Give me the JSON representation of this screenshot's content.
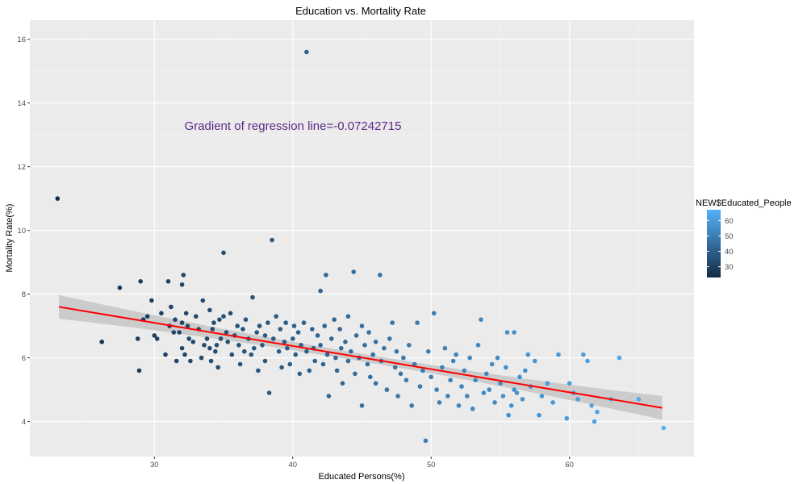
{
  "chart_data": {
    "type": "scatter",
    "title": "Education vs. Mortality Rate",
    "xlabel": "Educated Persons(%)",
    "ylabel": "Mortality Rate(%)",
    "xlim": [
      21,
      69
    ],
    "ylim": [
      2.9,
      16.6
    ],
    "x_ticks": [
      30,
      40,
      50,
      60
    ],
    "y_ticks": [
      4,
      6,
      8,
      10,
      12,
      14,
      16
    ],
    "grid": true,
    "background": "#ebebeb",
    "annotation": "Gradient of regression line=-0.07242715",
    "regression": {
      "slope": -0.07242715,
      "x_start": 23.1,
      "x_end": 66.7,
      "y_start": 7.6,
      "y_end": 4.43,
      "color": "#ff0000",
      "band_color": "#c8c8c8"
    },
    "legend": {
      "title": "NEW$Educated_People",
      "position": "right",
      "labels": [
        30,
        40,
        50,
        60
      ],
      "range": [
        23,
        67
      ],
      "color_low": "#132b43",
      "color_high": "#56b1f7"
    },
    "points": [
      [
        23,
        11
      ],
      [
        26.2,
        6.5
      ],
      [
        27.5,
        8.2
      ],
      [
        28.8,
        6.6
      ],
      [
        28.9,
        5.6
      ],
      [
        29,
        8.4
      ],
      [
        29.2,
        7.2
      ],
      [
        29.5,
        7.3
      ],
      [
        29.8,
        7.8
      ],
      [
        30,
        6.7
      ],
      [
        30.2,
        6.6
      ],
      [
        30.5,
        7.4
      ],
      [
        30.8,
        6.1
      ],
      [
        31,
        8.4
      ],
      [
        31.1,
        7
      ],
      [
        31.2,
        7.6
      ],
      [
        31.4,
        6.8
      ],
      [
        31.5,
        7.2
      ],
      [
        31.6,
        5.9
      ],
      [
        31.8,
        6.8
      ],
      [
        32,
        8.3
      ],
      [
        32,
        7.1
      ],
      [
        32,
        6.3
      ],
      [
        32.1,
        8.6
      ],
      [
        32.2,
        6.1
      ],
      [
        32.3,
        7.4
      ],
      [
        32.4,
        7
      ],
      [
        32.5,
        6.6
      ],
      [
        32.6,
        5.9
      ],
      [
        32.8,
        6.5
      ],
      [
        33,
        7.3
      ],
      [
        33.2,
        6.9
      ],
      [
        33.4,
        6
      ],
      [
        33.5,
        7.8
      ],
      [
        33.6,
        6.4
      ],
      [
        33.8,
        6.6
      ],
      [
        34,
        7.5
      ],
      [
        34,
        6.3
      ],
      [
        34.1,
        5.9
      ],
      [
        34.2,
        6.9
      ],
      [
        34.3,
        7.1
      ],
      [
        34.4,
        6.2
      ],
      [
        34.5,
        6.4
      ],
      [
        34.6,
        5.7
      ],
      [
        34.7,
        7.2
      ],
      [
        34.8,
        6.6
      ],
      [
        35,
        7.3
      ],
      [
        35,
        9.3
      ],
      [
        35.2,
        6.8
      ],
      [
        35.3,
        6.5
      ],
      [
        35.5,
        7.4
      ],
      [
        35.6,
        6.1
      ],
      [
        35.8,
        6.7
      ],
      [
        36,
        7
      ],
      [
        36.1,
        6.4
      ],
      [
        36.2,
        5.8
      ],
      [
        36.4,
        6.9
      ],
      [
        36.5,
        6.2
      ],
      [
        36.6,
        7.2
      ],
      [
        36.8,
        6.6
      ],
      [
        37,
        6.1
      ],
      [
        37.1,
        7.9
      ],
      [
        37.2,
        6.3
      ],
      [
        37.4,
        6.8
      ],
      [
        37.5,
        5.6
      ],
      [
        37.6,
        7
      ],
      [
        37.8,
        6.4
      ],
      [
        38,
        6.7
      ],
      [
        38,
        5.9
      ],
      [
        38.2,
        7.1
      ],
      [
        38.3,
        4.9
      ],
      [
        38.5,
        9.7
      ],
      [
        38.6,
        6.6
      ],
      [
        38.8,
        7.3
      ],
      [
        39,
        6.2
      ],
      [
        39.1,
        6.9
      ],
      [
        39.2,
        5.7
      ],
      [
        39.4,
        6.5
      ],
      [
        39.5,
        7.1
      ],
      [
        39.6,
        6.3
      ],
      [
        39.8,
        5.8
      ],
      [
        40,
        6.6
      ],
      [
        40.1,
        7
      ],
      [
        40.2,
        6.1
      ],
      [
        40.4,
        6.8
      ],
      [
        40.5,
        5.5
      ],
      [
        40.6,
        6.4
      ],
      [
        40.8,
        7.1
      ],
      [
        41,
        15.6
      ],
      [
        41,
        6.2
      ],
      [
        41.2,
        5.6
      ],
      [
        41.4,
        6.9
      ],
      [
        41.5,
        6.3
      ],
      [
        41.6,
        5.9
      ],
      [
        41.8,
        6.7
      ],
      [
        42,
        8.1
      ],
      [
        42,
        6.4
      ],
      [
        42.2,
        5.8
      ],
      [
        42.3,
        7
      ],
      [
        42.4,
        8.6
      ],
      [
        42.5,
        6.1
      ],
      [
        42.6,
        4.8
      ],
      [
        42.8,
        6.6
      ],
      [
        43,
        7.2
      ],
      [
        43.1,
        6
      ],
      [
        43.2,
        5.6
      ],
      [
        43.4,
        6.9
      ],
      [
        43.5,
        6.3
      ],
      [
        43.6,
        5.2
      ],
      [
        43.8,
        6.5
      ],
      [
        44,
        7.3
      ],
      [
        44,
        5.9
      ],
      [
        44.2,
        6.2
      ],
      [
        44.4,
        8.7
      ],
      [
        44.5,
        5.5
      ],
      [
        44.6,
        6.7
      ],
      [
        44.8,
        6
      ],
      [
        45,
        7
      ],
      [
        45,
        4.5
      ],
      [
        45.2,
        6.4
      ],
      [
        45.4,
        5.8
      ],
      [
        45.5,
        6.8
      ],
      [
        45.6,
        5.4
      ],
      [
        45.8,
        6.1
      ],
      [
        46,
        6.5
      ],
      [
        46,
        5.2
      ],
      [
        46.3,
        8.6
      ],
      [
        46.4,
        5.9
      ],
      [
        46.6,
        6.3
      ],
      [
        46.8,
        5
      ],
      [
        47,
        6.6
      ],
      [
        47.2,
        7.1
      ],
      [
        47.4,
        5.7
      ],
      [
        47.5,
        6.2
      ],
      [
        47.6,
        4.8
      ],
      [
        47.8,
        5.5
      ],
      [
        48,
        6
      ],
      [
        48.2,
        5.3
      ],
      [
        48.4,
        6.4
      ],
      [
        48.6,
        4.5
      ],
      [
        48.8,
        5.8
      ],
      [
        49,
        7.1
      ],
      [
        49.2,
        5.1
      ],
      [
        49.4,
        5.6
      ],
      [
        49.6,
        3.4
      ],
      [
        49.8,
        6.2
      ],
      [
        50,
        5.4
      ],
      [
        50.2,
        7.4
      ],
      [
        50.4,
        5
      ],
      [
        50.6,
        4.6
      ],
      [
        50.8,
        5.7
      ],
      [
        51,
        6.3
      ],
      [
        51.2,
        4.8
      ],
      [
        51.4,
        5.3
      ],
      [
        51.6,
        5.9
      ],
      [
        51.8,
        6.1
      ],
      [
        52,
        4.5
      ],
      [
        52.2,
        5.1
      ],
      [
        52.4,
        5.6
      ],
      [
        52.6,
        4.8
      ],
      [
        52.8,
        6
      ],
      [
        53,
        4.4
      ],
      [
        53.2,
        5.3
      ],
      [
        53.4,
        6.4
      ],
      [
        53.6,
        7.2
      ],
      [
        53.8,
        4.9
      ],
      [
        54,
        5.5
      ],
      [
        54.2,
        5
      ],
      [
        54.4,
        5.8
      ],
      [
        54.6,
        4.6
      ],
      [
        54.8,
        6
      ],
      [
        55,
        5.2
      ],
      [
        55.2,
        4.8
      ],
      [
        55.4,
        5.7
      ],
      [
        55.5,
        6.8
      ],
      [
        55.6,
        4.2
      ],
      [
        55.8,
        4.5
      ],
      [
        56,
        6.8
      ],
      [
        56,
        5
      ],
      [
        56.2,
        4.9
      ],
      [
        56.4,
        5.4
      ],
      [
        56.6,
        4.7
      ],
      [
        56.8,
        5.6
      ],
      [
        57,
        6.1
      ],
      [
        57.2,
        5.1
      ],
      [
        57.5,
        5.9
      ],
      [
        57.8,
        4.2
      ],
      [
        58,
        4.8
      ],
      [
        58.4,
        5.2
      ],
      [
        58.8,
        4.6
      ],
      [
        59.2,
        6.1
      ],
      [
        59.8,
        4.1
      ],
      [
        60,
        5.2
      ],
      [
        60.3,
        4.9
      ],
      [
        60.6,
        4.7
      ],
      [
        61,
        6.1
      ],
      [
        61.3,
        5.9
      ],
      [
        61.6,
        4.5
      ],
      [
        61.8,
        4
      ],
      [
        62,
        4.3
      ],
      [
        63,
        4.7
      ],
      [
        63.6,
        6
      ],
      [
        65,
        4.7
      ],
      [
        66.8,
        3.8
      ]
    ]
  }
}
